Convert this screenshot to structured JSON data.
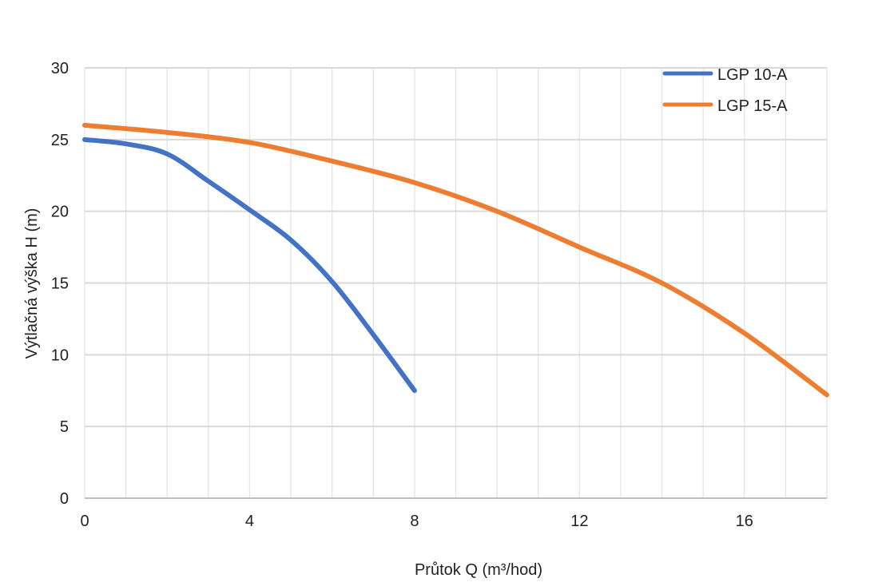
{
  "chart_data": {
    "type": "line",
    "title": "",
    "xlabel": "Průtok Q (m³/hod)",
    "ylabel": "Výtlačná výška H (m)",
    "xlim": [
      0,
      18
    ],
    "ylim": [
      0,
      30
    ],
    "xticks": [
      0,
      4,
      8,
      12,
      16
    ],
    "yticks": [
      0,
      5,
      10,
      15,
      20,
      25,
      30
    ],
    "x_minor_grid_step": 1,
    "grid": true,
    "legend_position": "top-right",
    "series": [
      {
        "name": "LGP 10-A",
        "color": "#4472C4",
        "x": [
          0,
          1,
          2,
          3,
          4,
          5,
          6,
          7,
          8
        ],
        "y": [
          25,
          24.7,
          24.0,
          22.1,
          20.1,
          18.0,
          15.1,
          11.4,
          7.5
        ]
      },
      {
        "name": "LGP 15-A",
        "color": "#ED7D31",
        "x": [
          0,
          2,
          4,
          6,
          8,
          10,
          12,
          14,
          16,
          18
        ],
        "y": [
          26,
          25.5,
          24.8,
          23.5,
          22.0,
          20.0,
          17.5,
          15.0,
          11.5,
          7.2
        ]
      }
    ]
  }
}
